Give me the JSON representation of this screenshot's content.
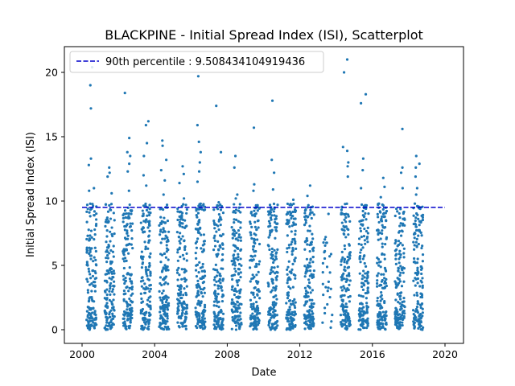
{
  "chart_data": {
    "type": "scatter",
    "title": "BLACKPINE - Initial Spread Index (ISI), Scatterplot",
    "xlabel": "Date",
    "ylabel": "Initial Spread Index (ISI)",
    "xlim": [
      "2000-01-01",
      "2020-01-01"
    ],
    "ylim": [
      -1,
      21.5
    ],
    "x_ticks": [
      "2000",
      "2004",
      "2008",
      "2012",
      "2016",
      "2020"
    ],
    "y_ticks": [
      "0",
      "5",
      "10",
      "15",
      "20"
    ],
    "grid": false,
    "legend": {
      "position": "top-left",
      "entries": [
        {
          "label": "90th percentile : 9.508434104919436",
          "style": "dashed",
          "color": "#0000cc"
        }
      ]
    },
    "threshold": {
      "value": 9.508434104919436,
      "x_range": [
        "2000-01-01",
        "2020-01-01"
      ],
      "color": "#0000cc"
    },
    "point_color": "#1f77b4",
    "seasons": [
      {
        "year": 2000,
        "start": "2000-04-01",
        "end": "2000-10-15",
        "highs": [
          20.4,
          19.0,
          17.2,
          13.3,
          12.8,
          11.0,
          10.8
        ]
      },
      {
        "year": 2001,
        "start": "2001-04-01",
        "end": "2001-10-15",
        "highs": [
          12.6,
          12.2,
          11.9,
          10.6,
          9.3
        ]
      },
      {
        "year": 2002,
        "start": "2002-04-01",
        "end": "2002-10-15",
        "highs": [
          18.4,
          14.9,
          13.8,
          13.5,
          12.9,
          12.3,
          10.8
        ]
      },
      {
        "year": 2003,
        "start": "2003-04-01",
        "end": "2003-10-15",
        "highs": [
          16.2,
          15.9,
          14.5,
          13.5,
          12.0,
          11.2
        ]
      },
      {
        "year": 2004,
        "start": "2004-04-01",
        "end": "2004-10-15",
        "highs": [
          14.7,
          14.3,
          13.2,
          12.4,
          11.6,
          10.5
        ]
      },
      {
        "year": 2005,
        "start": "2005-04-01",
        "end": "2005-10-15",
        "highs": [
          12.7,
          12.1,
          11.4,
          10.2
        ]
      },
      {
        "year": 2006,
        "start": "2006-04-01",
        "end": "2006-10-15",
        "highs": [
          19.7,
          15.9,
          14.6,
          13.8,
          13.0,
          12.3,
          11.5
        ]
      },
      {
        "year": 2007,
        "start": "2007-04-01",
        "end": "2007-10-15",
        "highs": [
          17.4,
          13.8,
          9.9
        ]
      },
      {
        "year": 2008,
        "start": "2008-04-01",
        "end": "2008-10-15",
        "highs": [
          13.5,
          12.6,
          10.5,
          10.2
        ]
      },
      {
        "year": 2009,
        "start": "2009-04-01",
        "end": "2009-10-15",
        "highs": [
          15.7,
          11.3,
          10.8
        ]
      },
      {
        "year": 2010,
        "start": "2010-04-01",
        "end": "2010-10-15",
        "highs": [
          17.8,
          13.2,
          12.2,
          10.9
        ]
      },
      {
        "year": 2011,
        "start": "2011-04-01",
        "end": "2011-10-15",
        "highs": [
          10.1,
          9.7,
          8.4
        ]
      },
      {
        "year": 2012,
        "start": "2012-04-01",
        "end": "2012-10-15",
        "highs": [
          11.2,
          10.4,
          9.3
        ]
      },
      {
        "year": 2013,
        "start": "2013-04-01",
        "end": "2013-10-15",
        "highs": [
          9.0,
          7.2,
          6.1
        ]
      },
      {
        "year": 2014,
        "start": "2014-04-01",
        "end": "2014-10-15",
        "highs": [
          21.0,
          20.0,
          14.2,
          13.9,
          13.0,
          12.7,
          11.9
        ]
      },
      {
        "year": 2015,
        "start": "2015-04-01",
        "end": "2015-10-15",
        "highs": [
          18.3,
          17.6,
          13.3,
          12.4,
          11.0
        ]
      },
      {
        "year": 2016,
        "start": "2016-04-01",
        "end": "2016-10-15",
        "highs": [
          11.8,
          11.1,
          10.3,
          9.8
        ]
      },
      {
        "year": 2017,
        "start": "2017-04-01",
        "end": "2017-10-15",
        "highs": [
          15.6,
          12.6,
          12.2,
          11.0
        ]
      },
      {
        "year": 2018,
        "start": "2018-04-01",
        "end": "2018-10-15",
        "highs": [
          13.5,
          12.9,
          12.6,
          11.9,
          11.0,
          10.5
        ]
      }
    ]
  }
}
